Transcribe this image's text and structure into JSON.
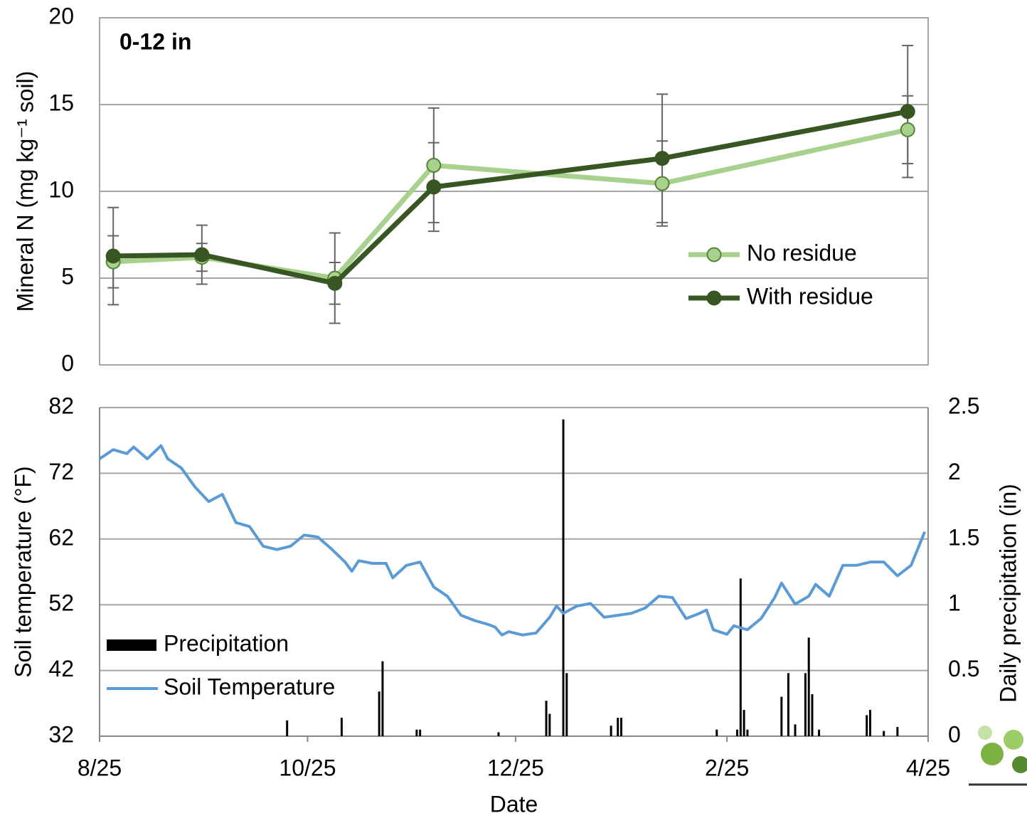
{
  "chart_data": [
    {
      "type": "line",
      "title": "0-12 in",
      "y_label": "Mineral N (mg kg⁻¹ soil)",
      "xlim": [
        0,
        243
      ],
      "ylim": [
        0,
        20
      ],
      "yticks": [
        0,
        5,
        10,
        15,
        20
      ],
      "grid": true,
      "legend": "lower right",
      "series": [
        {
          "name": "No residue",
          "color": "#a9d18e",
          "edge": "#548235",
          "x": [
            4,
            30,
            69,
            98,
            165,
            237
          ],
          "values": [
            5.94,
            6.2,
            5.0,
            11.5,
            10.45,
            13.55
          ],
          "errors": [
            1.5,
            0.8,
            2.6,
            3.3,
            2.45,
            1.95
          ]
        },
        {
          "name": "With residue",
          "color": "#375623",
          "edge": "#375623",
          "x": [
            4,
            30,
            69,
            98,
            165,
            237
          ],
          "values": [
            6.27,
            6.35,
            4.7,
            10.25,
            11.9,
            14.6
          ],
          "errors": [
            2.8,
            1.7,
            1.2,
            2.55,
            3.7,
            3.8
          ]
        }
      ]
    },
    {
      "type": "combo",
      "x_label": "Date",
      "y_label": "Soil temperature (°F)",
      "y2_label": "Daily precipitation (in)",
      "xlim": [
        0,
        243
      ],
      "xticks": [
        {
          "value": 0,
          "label": "8/25"
        },
        {
          "value": 61,
          "label": "10/25"
        },
        {
          "value": 122,
          "label": "12/25"
        },
        {
          "value": 184,
          "label": "2/25"
        },
        {
          "value": 243,
          "label": "4/25"
        }
      ],
      "ylim": [
        32,
        82
      ],
      "yticks": [
        32,
        42,
        52,
        62,
        72,
        82
      ],
      "y2lim": [
        0,
        2.5
      ],
      "y2ticks": [
        0,
        0.5,
        1,
        1.5,
        2,
        2.5
      ],
      "grid": true,
      "legend": "lower left",
      "series": [
        {
          "name": "Precipitation",
          "kind": "bar",
          "axis": "y2",
          "color": "#000000",
          "x": [
            55,
            71,
            82,
            83,
            93,
            94,
            117,
            131,
            132,
            136,
            137,
            150,
            152,
            153,
            181,
            187,
            188,
            189,
            190,
            200,
            202,
            204,
            207,
            208,
            209,
            211,
            225,
            226,
            230,
            234
          ],
          "values": [
            0.12,
            0.14,
            0.34,
            0.57,
            0.05,
            0.05,
            0.03,
            0.27,
            0.17,
            2.41,
            0.48,
            0.08,
            0.14,
            0.14,
            0.05,
            0.05,
            1.2,
            0.2,
            0.05,
            0.3,
            0.48,
            0.09,
            0.48,
            0.75,
            0.32,
            0.05,
            0.16,
            0.2,
            0.04,
            0.07
          ]
        },
        {
          "name": "Soil Temperature",
          "kind": "line",
          "color": "#5b9bd5",
          "x": [
            0,
            4,
            8,
            10,
            14,
            18,
            20,
            24,
            28,
            32,
            36,
            40,
            44,
            48,
            52,
            56,
            60,
            64,
            68,
            72,
            74,
            76,
            80,
            84,
            86,
            90,
            94,
            98,
            102,
            106,
            110,
            114,
            116,
            118,
            120,
            124,
            128,
            132,
            134,
            136,
            140,
            144,
            148,
            152,
            156,
            160,
            164,
            168,
            172,
            176,
            178,
            180,
            184,
            186,
            190,
            194,
            198,
            200,
            204,
            208,
            210,
            214,
            218,
            222,
            226,
            230,
            234,
            238,
            242
          ],
          "values": [
            74.2,
            75.6,
            75.0,
            76.0,
            74.2,
            76.2,
            74.2,
            72.8,
            69.9,
            67.7,
            68.8,
            64.5,
            63.9,
            60.9,
            60.4,
            60.9,
            62.6,
            62.3,
            60.5,
            58.5,
            57.1,
            58.7,
            58.3,
            58.3,
            56.1,
            58.0,
            58.5,
            54.7,
            53.3,
            50.4,
            49.6,
            49.0,
            48.6,
            47.4,
            47.9,
            47.4,
            47.7,
            50.1,
            51.8,
            50.7,
            51.8,
            52.2,
            50.1,
            50.4,
            50.7,
            51.5,
            53.3,
            53.1,
            49.9,
            50.7,
            51.2,
            48.2,
            47.5,
            48.8,
            48.2,
            49.9,
            53.1,
            55.3,
            52.1,
            53.3,
            55.1,
            53.3,
            58.0,
            58.0,
            58.5,
            58.5,
            56.4,
            58.0,
            63.1
          ]
        }
      ]
    }
  ]
}
